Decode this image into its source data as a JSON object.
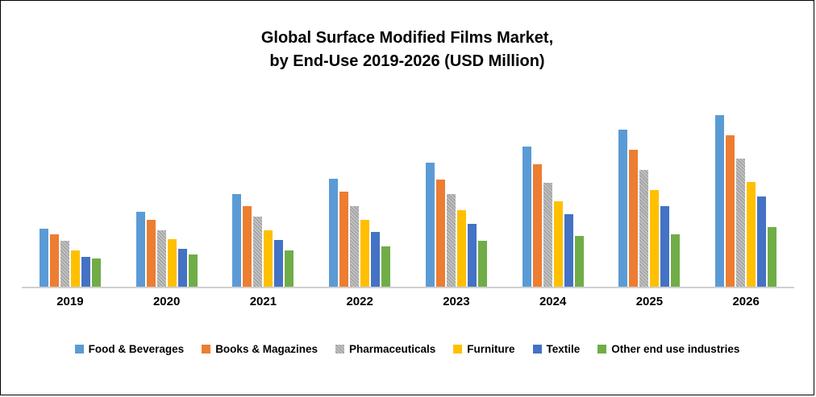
{
  "title": {
    "line1": "Global Surface Modified Films Market,",
    "line2": "by End-Use 2019-2026 (USD Million)"
  },
  "chart_data": {
    "type": "bar",
    "title": "Global Surface Modified Films Market, by End-Use 2019-2026 (USD Million)",
    "xlabel": "",
    "ylabel": "",
    "ylim": [
      0,
      245
    ],
    "grid": false,
    "y_axis_tick_labels_visible": false,
    "legend_position": "bottom",
    "categories": [
      "2019",
      "2020",
      "2021",
      "2022",
      "2023",
      "2024",
      "2025",
      "2026"
    ],
    "series": [
      {
        "name": "Food & Beverages",
        "color": "#5B9BD5",
        "hatch": false,
        "values": [
          72,
          93,
          115,
          134,
          154,
          174,
          195,
          213
        ]
      },
      {
        "name": "Books & Magazines",
        "color": "#ED7D31",
        "hatch": false,
        "values": [
          65,
          83,
          100,
          118,
          133,
          152,
          170,
          188
        ]
      },
      {
        "name": "Pharmaceuticals",
        "color": "#A6A6A6",
        "hatch": true,
        "values": [
          57,
          70,
          87,
          100,
          115,
          129,
          145,
          159
        ]
      },
      {
        "name": "Furniture",
        "color": "#FFC000",
        "hatch": false,
        "values": [
          45,
          59,
          70,
          83,
          95,
          106,
          120,
          130
        ]
      },
      {
        "name": "Textile",
        "color": "#4472C4",
        "hatch": false,
        "values": [
          37,
          47,
          58,
          68,
          78,
          90,
          100,
          112
        ]
      },
      {
        "name": "Other end use industries",
        "color": "#70AD47",
        "hatch": false,
        "values": [
          35,
          40,
          45,
          50,
          57,
          63,
          65,
          74
        ]
      }
    ]
  }
}
